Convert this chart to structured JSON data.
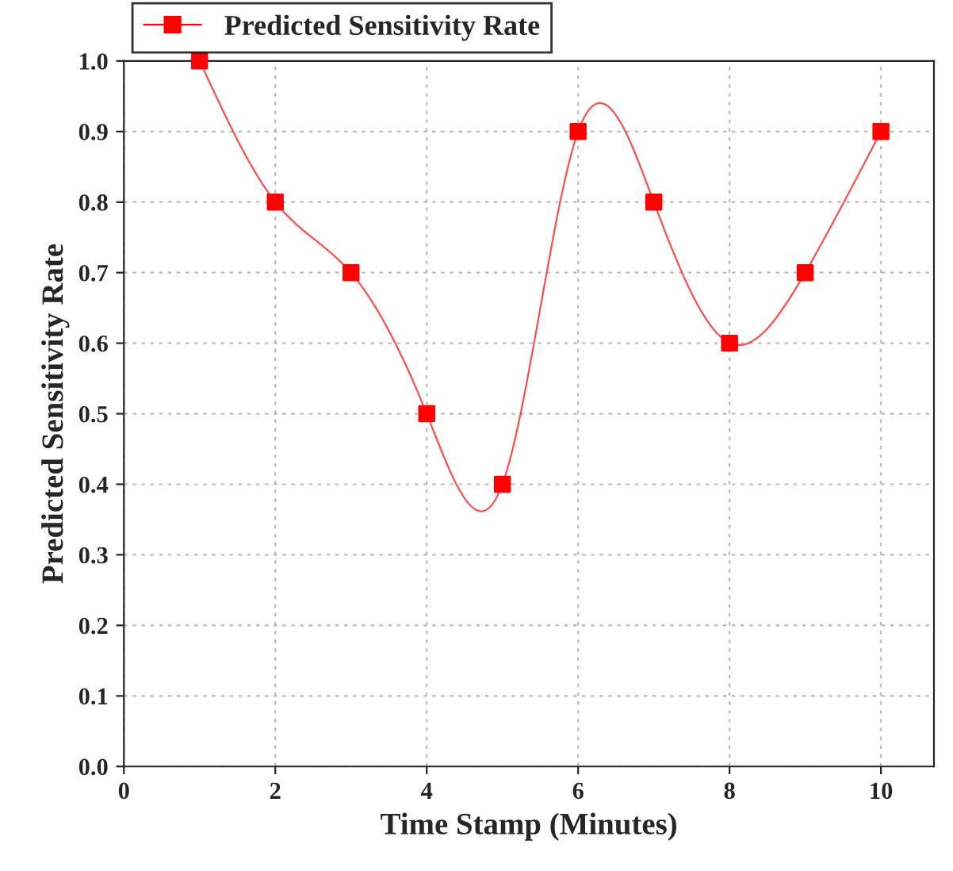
{
  "chart_data": {
    "type": "line",
    "xlabel": "Time Stamp (Minutes)",
    "ylabel": "Predicted Sensitivity Rate",
    "x": [
      1,
      2,
      3,
      4,
      5,
      6,
      7,
      8,
      9,
      10
    ],
    "series": [
      {
        "name": "Predicted Sensitivity Rate",
        "color": "#ff0000",
        "values": [
          1.0,
          0.8,
          0.7,
          0.5,
          0.4,
          0.9,
          0.8,
          0.6,
          0.7,
          0.9
        ]
      }
    ],
    "xlim": [
      0,
      10.7
    ],
    "xticks": [
      0,
      2,
      4,
      6,
      8,
      10
    ],
    "ylim": [
      0,
      1.0
    ],
    "yticks": [
      {
        "value": 0,
        "label": "0.0"
      },
      0.1,
      0.2,
      0.3,
      0.4,
      0.5,
      0.6,
      0.7,
      0.8,
      0.9,
      {
        "value": 1,
        "label": "1.0"
      }
    ],
    "grid": true,
    "legend": "top left",
    "marker": "square",
    "line_style": "solid"
  }
}
